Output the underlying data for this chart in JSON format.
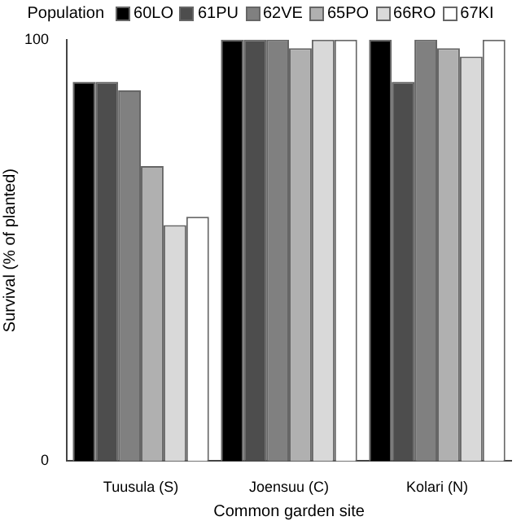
{
  "chart_data": {
    "type": "bar",
    "xlabel": "Common garden site",
    "ylabel": "Survival (% of planted)",
    "legend_title": "Population",
    "categories": [
      "Tuusula (S)",
      "Joensuu (C)",
      "Kolari (N)"
    ],
    "series": [
      {
        "name": "60LO",
        "color": "#000000",
        "values": [
          90,
          100,
          100
        ]
      },
      {
        "name": "61PU",
        "color": "#4d4d4d",
        "values": [
          90,
          100,
          90
        ]
      },
      {
        "name": "62VE",
        "color": "#808080",
        "values": [
          88,
          100,
          100
        ]
      },
      {
        "name": "65PO",
        "color": "#b0b0b0",
        "values": [
          70,
          98,
          98
        ]
      },
      {
        "name": "66RO",
        "color": "#d9d9d9",
        "values": [
          56,
          100,
          96
        ]
      },
      {
        "name": "67KI",
        "color": "#ffffff",
        "values": [
          58,
          100,
          100
        ]
      }
    ],
    "ylim": [
      0,
      100
    ],
    "yticks": [
      0,
      100
    ],
    "grid": false,
    "legend": "top"
  }
}
